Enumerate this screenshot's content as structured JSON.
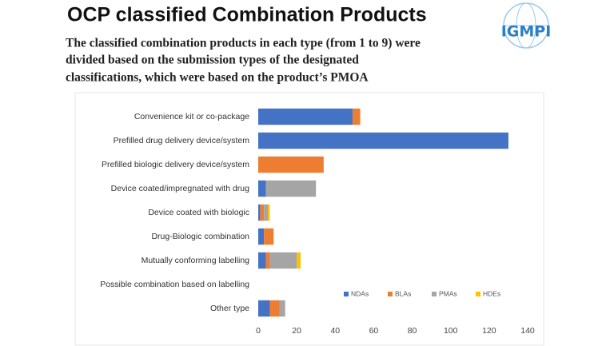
{
  "logo": "IGMPI",
  "chart_data": {
    "type": "stacked_barh",
    "title": "OCP classified Combination Products",
    "subtitle": [
      "The classified combination products in each type (from 1 to 9) were",
      "divided based on the submission types of the designated",
      "classifications, which were based on the product’s PMOA"
    ],
    "categories": [
      "Convenience kit or co-package",
      "Prefilled drug delivery device/system",
      "Prefilled biologic delivery device/system",
      "Device coated/impregnated with drug",
      "Device coated with biologic",
      "Drug-Biologic combination",
      "Mutually conforming labelling",
      "Possible combination based on labelling",
      "Other type"
    ],
    "series": [
      {
        "name": "NDAs",
        "color": "#4472c4",
        "values": [
          49,
          130,
          0,
          4,
          1,
          3,
          4,
          0,
          6
        ]
      },
      {
        "name": "BLAs",
        "color": "#ed7d31",
        "values": [
          4,
          0,
          34,
          0,
          2,
          5,
          2,
          0,
          5
        ]
      },
      {
        "name": "PMAs",
        "color": "#a5a5a5",
        "values": [
          0,
          0,
          0,
          26,
          2,
          0,
          14,
          0,
          3
        ]
      },
      {
        "name": "HDEs",
        "color": "#ffc000",
        "values": [
          0,
          0,
          0,
          0,
          1,
          0,
          2,
          0,
          0
        ]
      }
    ],
    "xlim": [
      0,
      140
    ],
    "xticks": [
      0,
      20,
      40,
      60,
      80,
      100,
      120,
      140
    ],
    "legend": "lower right"
  }
}
